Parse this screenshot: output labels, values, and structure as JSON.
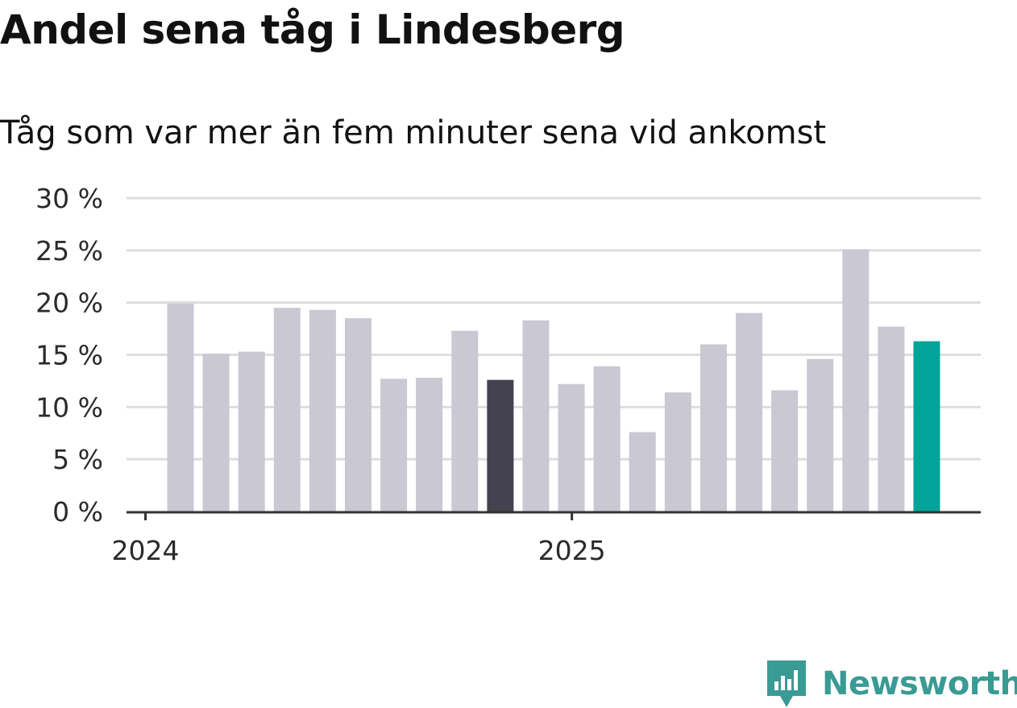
{
  "title": "Andel sena tåg i Lindesberg",
  "subtitle": "Tåg som var mer än fem minuter sena vid ankomst",
  "brand": {
    "name": "Newsworthy",
    "icon": "newsworthy-logo-icon",
    "color": "#3a9a94"
  },
  "colors": {
    "default": "#c9c8d3",
    "highlight": "#43424e",
    "latest": "#02a399",
    "grid": "#dddddd",
    "axis": "#333333"
  },
  "chart_data": {
    "type": "bar",
    "x": [
      "2024-01",
      "2024-02",
      "2024-03",
      "2024-04",
      "2024-05",
      "2024-06",
      "2024-07",
      "2024-08",
      "2024-09",
      "2024-10",
      "2024-11",
      "2024-12",
      "2025-01",
      "2025-02",
      "2025-03",
      "2025-04",
      "2025-05",
      "2025-06",
      "2025-07",
      "2025-08",
      "2025-09",
      "2025-10"
    ],
    "values": [
      19.9,
      15.1,
      15.3,
      19.5,
      19.3,
      18.5,
      12.7,
      12.8,
      17.3,
      12.6,
      18.3,
      12.2,
      13.9,
      7.6,
      11.4,
      16.0,
      19.0,
      11.6,
      14.6,
      25.1,
      17.7,
      16.3
    ],
    "bar_colors": [
      "default",
      "default",
      "default",
      "default",
      "default",
      "default",
      "default",
      "default",
      "default",
      "highlight",
      "default",
      "default",
      "default",
      "default",
      "default",
      "default",
      "default",
      "default",
      "default",
      "default",
      "default",
      "latest"
    ],
    "x_ticks": [
      {
        "label": "2024",
        "x": "2024-01"
      },
      {
        "label": "2025",
        "x": "2025-01"
      }
    ],
    "y_ticks": [
      {
        "value": 0,
        "label": "0 %"
      },
      {
        "value": 5,
        "label": "5 %"
      },
      {
        "value": 10,
        "label": "10 %"
      },
      {
        "value": 15,
        "label": "15 %"
      },
      {
        "value": 20,
        "label": "20 %"
      },
      {
        "value": 25,
        "label": "25 %"
      },
      {
        "value": 30,
        "label": "30 %"
      }
    ],
    "ylim": [
      0,
      30
    ],
    "grid": true
  }
}
